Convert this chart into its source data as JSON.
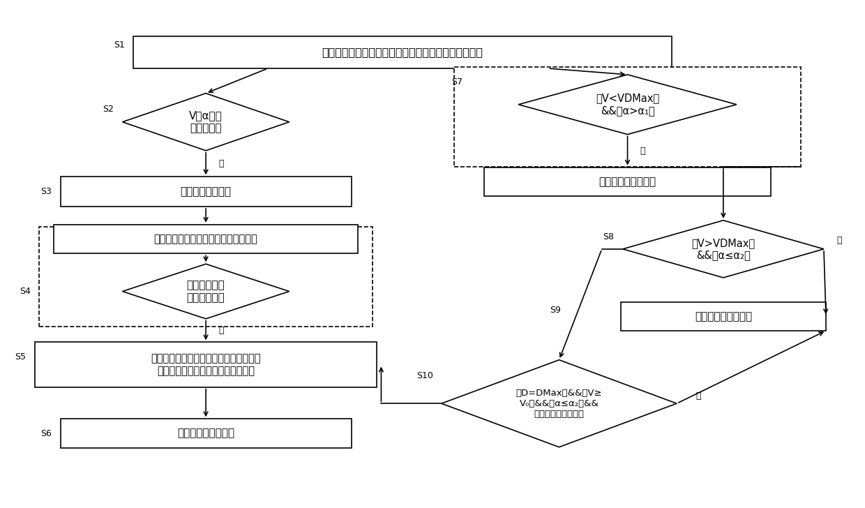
{
  "bg_color": "#ffffff",
  "line_color": "#000000",
  "font_size": 11,
  "font_size_small": 9,
  "S1_text": "获取所述电动摩托车的车速、转把的转角以及当前挡位",
  "S2_text": "V、α满足\n换挡条件？",
  "S3_text": "输出换挡提示信号",
  "S4i_text": "获取所述离合器接合或断开的开关信号",
  "S4d_text": "所述开关信号\n为断开信号？",
  "S5_text": "控制所述电机的转速变化，以使得换挡后\n所述离合器两端部的转速能够相匹配",
  "S6_text": "控制所述离合器接合",
  "S7d_text": "（V<VDMax）\n&&（α>α₁）",
  "S7b_text": "不输出换挡提示信号",
  "S8_text": "（V>VDMax）\n&&（α≤α₂）",
  "S9_text": "控制所述离合器断开",
  "S10_text": "（D=DMax）&&（V≥\nV₀）&&（α≤α₂）&&\n（刹车装置未启动）",
  "yes_text": "是"
}
